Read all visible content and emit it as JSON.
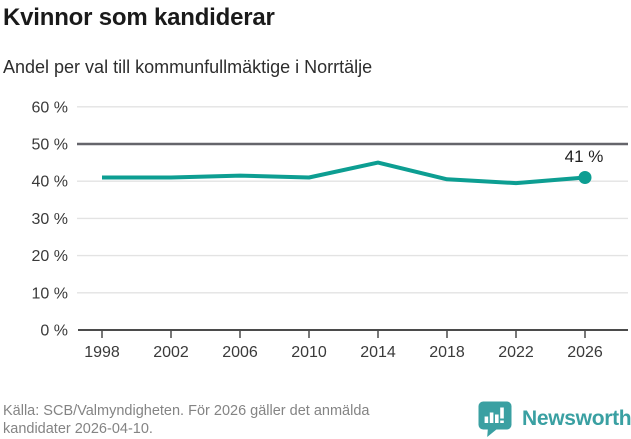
{
  "header": {
    "title": "Kvinnor som kandiderar",
    "subtitle": "Andel per val till kommunfullmäktige i Norrtälje"
  },
  "chart_data": {
    "type": "line",
    "title": "Kvinnor som kandiderar",
    "subtitle": "Andel per val till kommunfullmäktige i Norrtälje",
    "x": [
      1998,
      2002,
      2006,
      2010,
      2014,
      2018,
      2022,
      2026
    ],
    "xtick_labels": [
      "1998",
      "2002",
      "2006",
      "2010",
      "2014",
      "2018",
      "2022",
      "2026"
    ],
    "series": [
      {
        "name": "Andel kvinnor som kandiderar",
        "values": [
          41,
          41,
          41.5,
          41,
          45,
          40.5,
          39.5,
          41
        ],
        "color": "#0d9e92"
      }
    ],
    "end_label": "41 %",
    "ylim": [
      0,
      60
    ],
    "yticks": [
      0,
      10,
      20,
      30,
      40,
      50,
      60
    ],
    "ytick_labels": [
      "0 %",
      "10 %",
      "20 %",
      "30 %",
      "40 %",
      "50 %",
      "60 %"
    ],
    "reference_line": 50,
    "grid": true,
    "legend": "none",
    "marker_on_last_point": true
  },
  "footer": {
    "source_line1": "Källa: SCB/Valmyndigheten. För 2026 gäller det anmälda",
    "source_line2": "kandidater 2026-04-10.",
    "brand_name": "Newsworthy"
  },
  "colors": {
    "line": "#0d9e92",
    "reference_line": "#65656b",
    "gridline": "#e3e3e3",
    "axis": "#4b4b4b",
    "tick_label": "#3a3a3a",
    "end_label": "#1f1f1f",
    "brand_teal": "#3aa0a2"
  }
}
